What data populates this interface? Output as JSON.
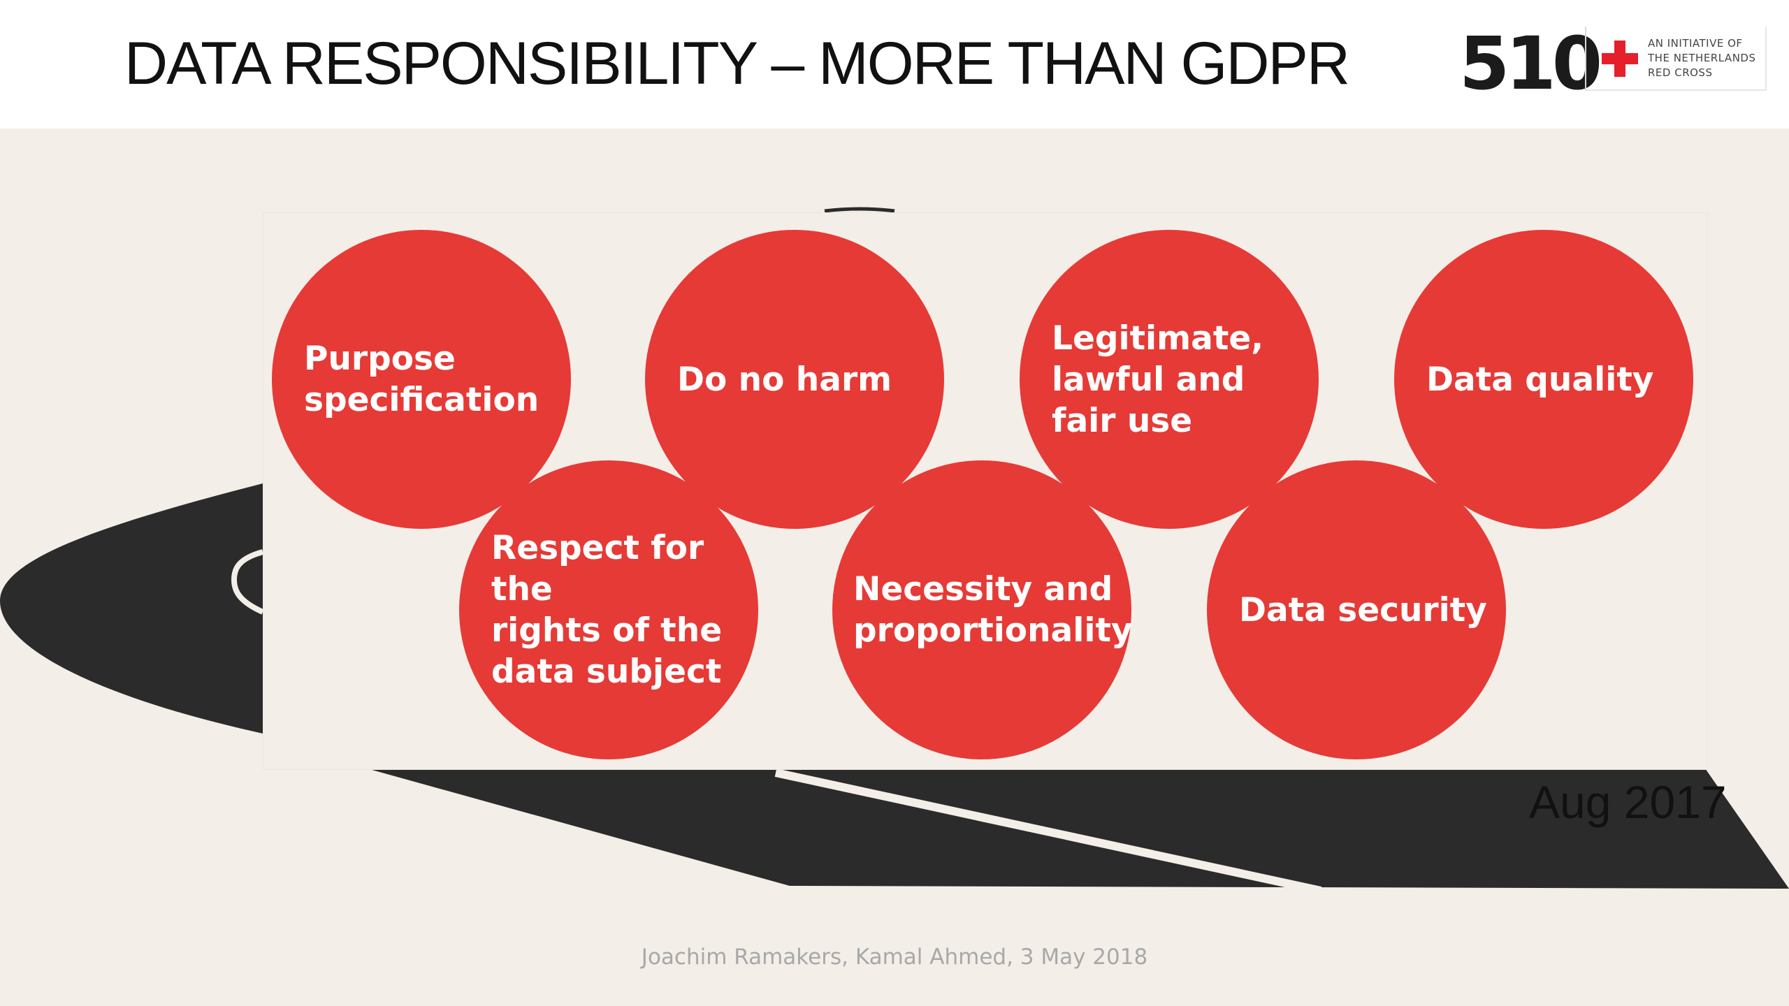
{
  "slide": {
    "title": "DATA RESPONSIBILITY – MORE THAN GDPR",
    "logo": {
      "text": "510",
      "initiative_lines": [
        "AN INITIATIVE OF",
        "THE NETHERLANDS",
        "RED CROSS"
      ],
      "cross_color": "#e4202a"
    },
    "principles": [
      {
        "label": "Purpose\nspecification"
      },
      {
        "label": "Do no harm"
      },
      {
        "label": "Legitimate,\nlawful and\nfair use"
      },
      {
        "label": "Data quality"
      },
      {
        "label": "Respect for the\nrights of the\ndata subject"
      },
      {
        "label": "Necessity and\nproportionality"
      },
      {
        "label": "Data security"
      }
    ],
    "date": "Aug 2017",
    "footer": "Joachim Ramakers, Kamal Ahmed, 3 May 2018",
    "colors": {
      "circle": "#e63a36",
      "background": "#f3eee8",
      "road": "#2b2b2b"
    }
  }
}
